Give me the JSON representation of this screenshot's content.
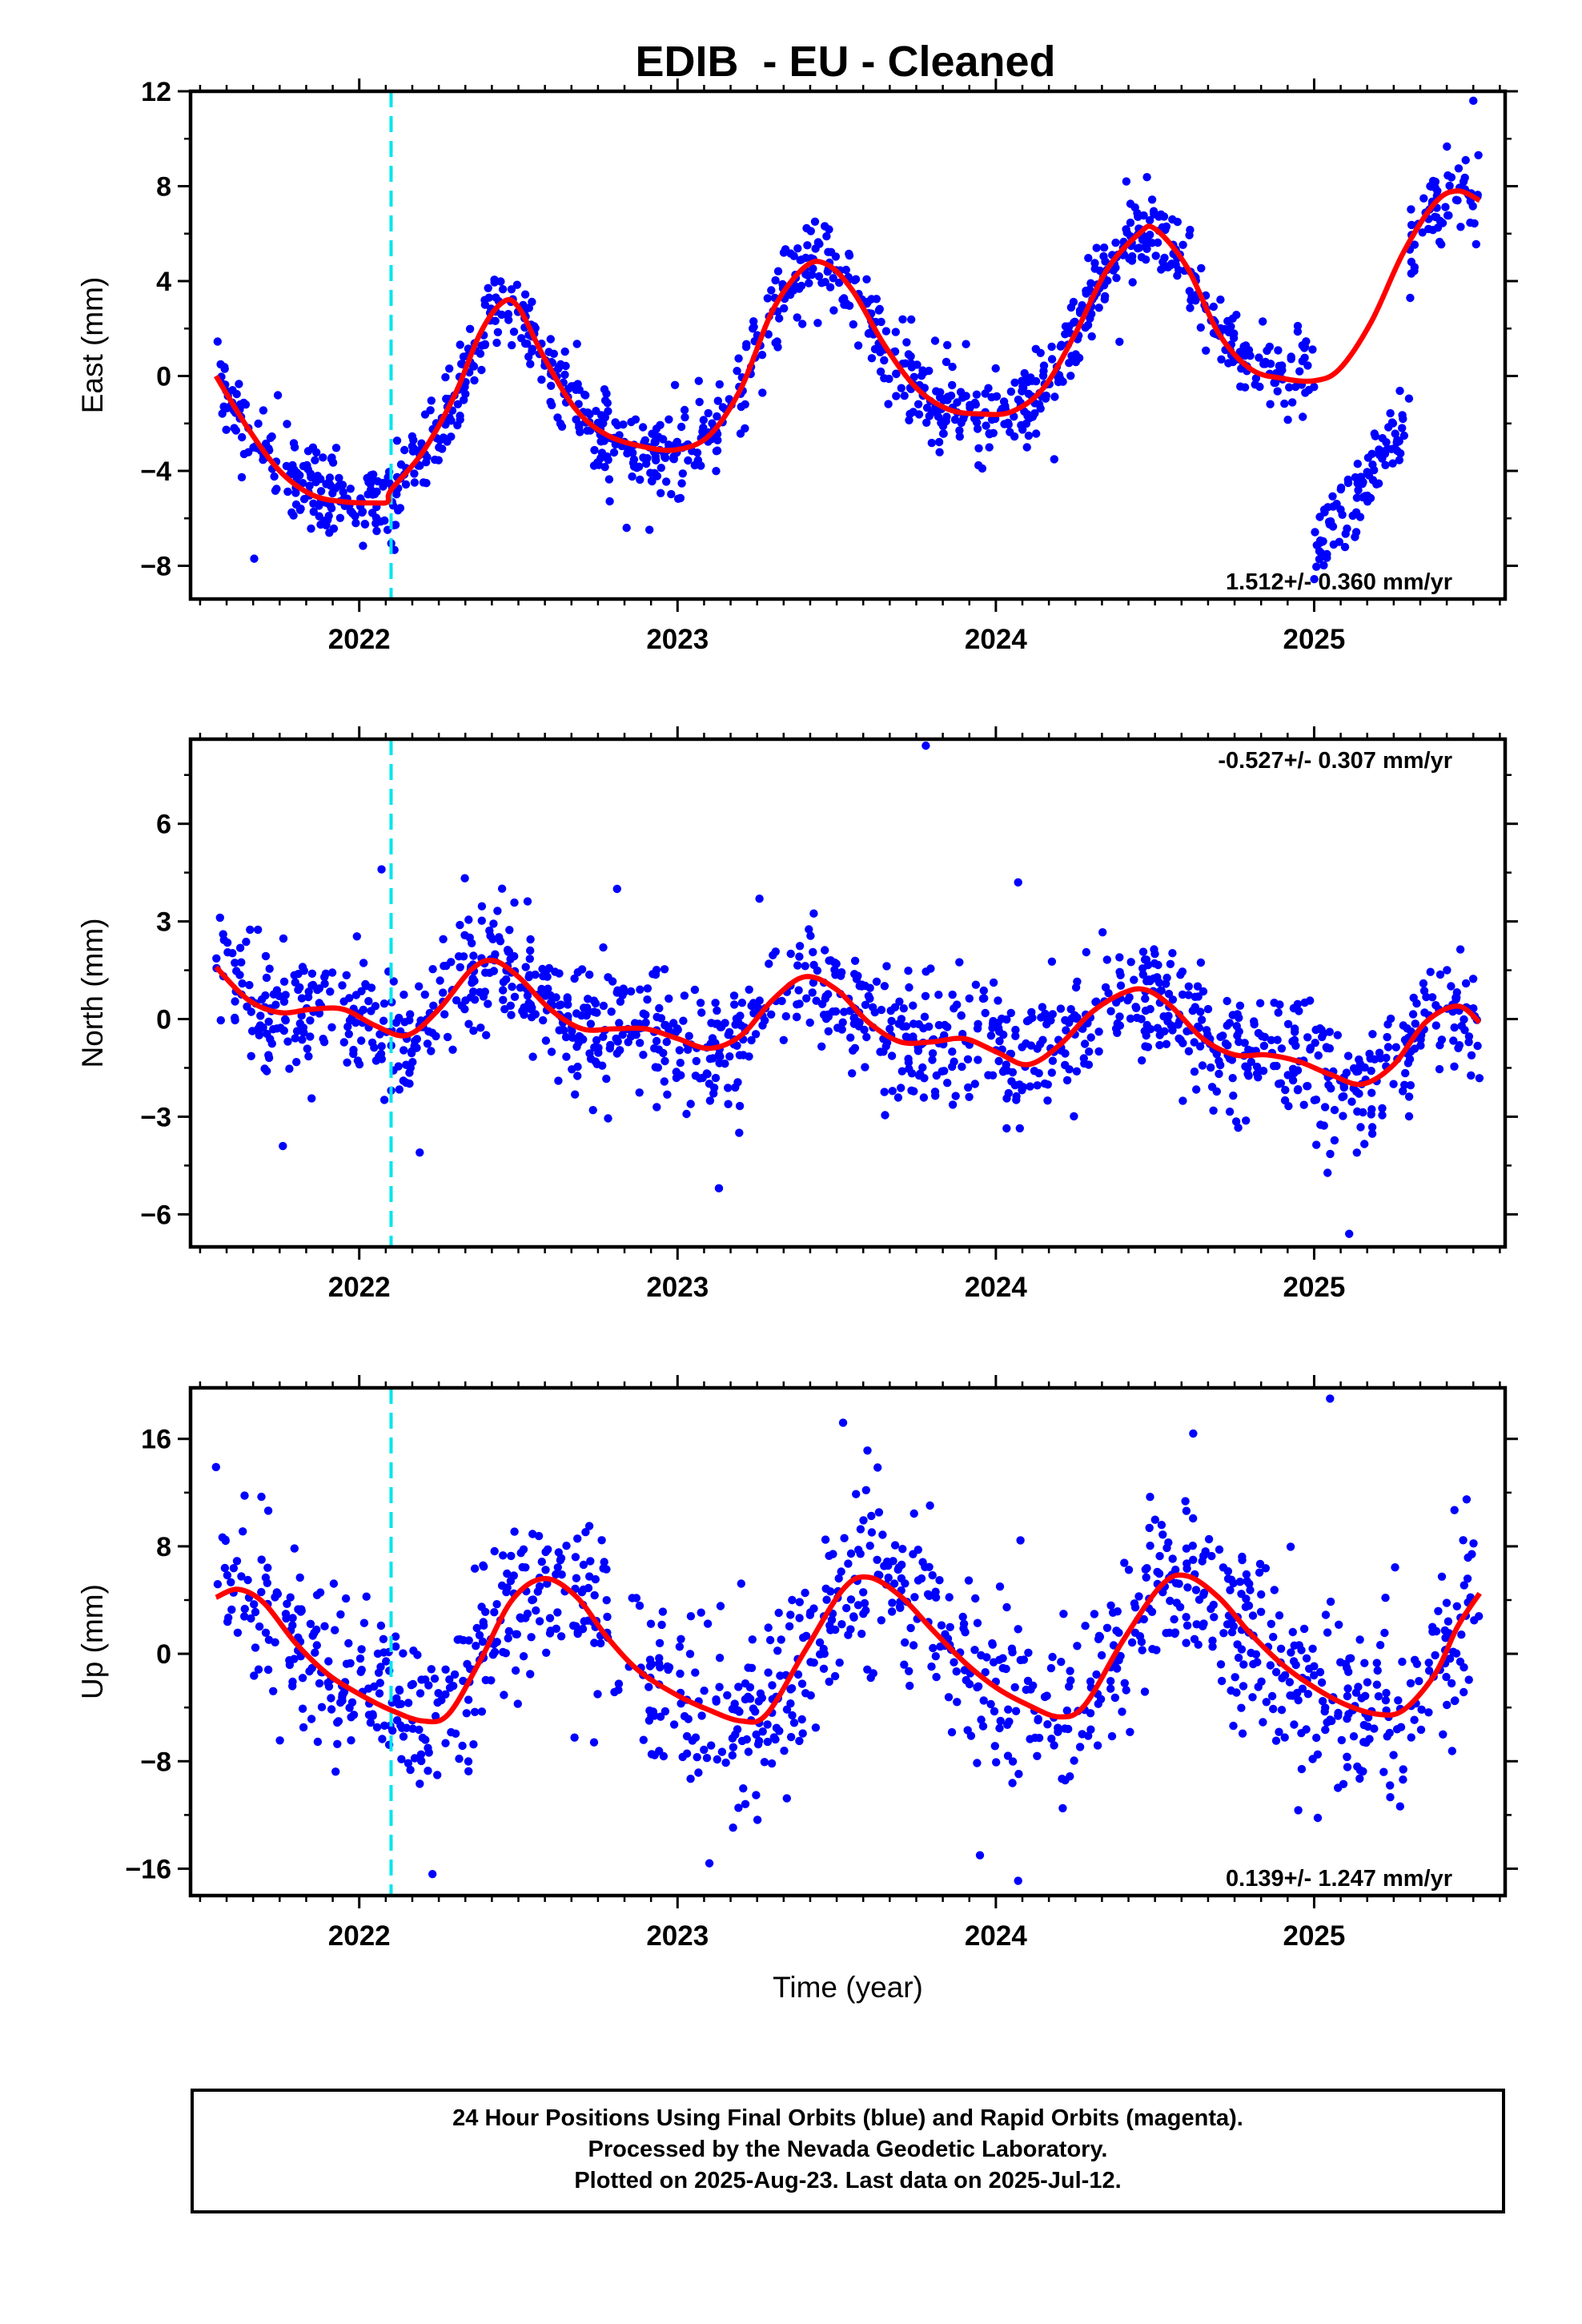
{
  "title": "EDIB  - EU - Cleaned",
  "footer": {
    "line1": "24 Hour Positions Using Final Orbits (blue) and Rapid Orbits (magenta).",
    "line2": "Processed by the Nevada Geodetic Laboratory.",
    "line3": "Plotted on 2025-Aug-23. Last data on 2025-Jul-12."
  },
  "colors": {
    "final_orbits": "#0000ff",
    "fit": "#ff0000",
    "event": "#00e5ee"
  },
  "chart_data": [
    {
      "type": "scatter",
      "panel": "east",
      "ylabel": "East (mm)",
      "xlabel": "",
      "xlim": [
        2021.47,
        2025.6
      ],
      "ylim": [
        -9.4,
        12
      ],
      "yticks": [
        -8,
        -4,
        0,
        4,
        8,
        12
      ],
      "xticks": [
        2022,
        2023,
        2024,
        2025
      ],
      "event_line_x": 2022.1,
      "velocity_label": "1.512+/- 0.360 mm/yr",
      "velocity_position": "bottom-right",
      "trend": [
        [
          2021.55,
          0.0
        ],
        [
          2021.65,
          -2.2
        ],
        [
          2021.75,
          -4.0
        ],
        [
          2021.85,
          -5.0
        ],
        [
          2021.95,
          -5.3
        ],
        [
          2022.05,
          -5.35
        ],
        [
          2022.09,
          -5.3
        ],
        [
          2022.1,
          -4.8
        ],
        [
          2022.2,
          -3.2
        ],
        [
          2022.3,
          -0.8
        ],
        [
          2022.38,
          1.8
        ],
        [
          2022.45,
          3.1
        ],
        [
          2022.5,
          2.9
        ],
        [
          2022.58,
          0.8
        ],
        [
          2022.68,
          -1.4
        ],
        [
          2022.78,
          -2.5
        ],
        [
          2022.9,
          -3.0
        ],
        [
          2023.0,
          -3.1
        ],
        [
          2023.1,
          -2.5
        ],
        [
          2023.2,
          -0.5
        ],
        [
          2023.3,
          2.8
        ],
        [
          2023.4,
          4.6
        ],
        [
          2023.47,
          4.7
        ],
        [
          2023.55,
          3.6
        ],
        [
          2023.65,
          1.3
        ],
        [
          2023.75,
          -0.5
        ],
        [
          2023.85,
          -1.4
        ],
        [
          2023.95,
          -1.6
        ],
        [
          2024.05,
          -1.5
        ],
        [
          2024.15,
          -0.5
        ],
        [
          2024.25,
          1.8
        ],
        [
          2024.35,
          4.5
        ],
        [
          2024.45,
          6.0
        ],
        [
          2024.5,
          6.2
        ],
        [
          2024.6,
          4.6
        ],
        [
          2024.7,
          1.8
        ],
        [
          2024.8,
          0.3
        ],
        [
          2024.9,
          -0.1
        ],
        [
          2025.0,
          -0.2
        ],
        [
          2025.08,
          0.3
        ],
        [
          2025.18,
          2.3
        ],
        [
          2025.28,
          5.2
        ],
        [
          2025.38,
          7.3
        ],
        [
          2025.45,
          7.8
        ],
        [
          2025.52,
          7.4
        ]
      ],
      "scatter_model": {
        "count": 1250,
        "noise_sd": 0.9,
        "segment": {
          "x_from": 2025.0,
          "x_to": 2025.3,
          "y_from": -7.3,
          "y_to": -1.8
        },
        "outliers": [
          [
            2025.5,
            11.6
          ],
          [
            2022.84,
            -6.4
          ],
          [
            2021.67,
            -7.7
          ],
          [
            2024.41,
            8.2
          ]
        ]
      }
    },
    {
      "type": "scatter",
      "panel": "north",
      "ylabel": "North (mm)",
      "xlabel": "",
      "xlim": [
        2021.47,
        2025.6
      ],
      "ylim": [
        -7,
        8.6
      ],
      "yticks": [
        -6,
        -3,
        0,
        3,
        6
      ],
      "xticks": [
        2022,
        2023,
        2024,
        2025
      ],
      "event_line_x": 2022.1,
      "velocity_label": "-0.527+/- 0.307 mm/yr",
      "velocity_position": "top-right",
      "trend": [
        [
          2021.55,
          1.6
        ],
        [
          2021.65,
          0.6
        ],
        [
          2021.75,
          0.2
        ],
        [
          2021.85,
          0.3
        ],
        [
          2021.95,
          0.3
        ],
        [
          2022.05,
          -0.2
        ],
        [
          2022.15,
          -0.5
        ],
        [
          2022.25,
          0.3
        ],
        [
          2022.35,
          1.5
        ],
        [
          2022.42,
          1.8
        ],
        [
          2022.5,
          1.3
        ],
        [
          2022.6,
          0.3
        ],
        [
          2022.7,
          -0.3
        ],
        [
          2022.8,
          -0.3
        ],
        [
          2022.9,
          -0.3
        ],
        [
          2023.0,
          -0.6
        ],
        [
          2023.1,
          -0.9
        ],
        [
          2023.2,
          -0.5
        ],
        [
          2023.3,
          0.6
        ],
        [
          2023.4,
          1.3
        ],
        [
          2023.5,
          0.9
        ],
        [
          2023.6,
          -0.1
        ],
        [
          2023.7,
          -0.7
        ],
        [
          2023.8,
          -0.7
        ],
        [
          2023.9,
          -0.6
        ],
        [
          2024.0,
          -1.0
        ],
        [
          2024.1,
          -1.4
        ],
        [
          2024.2,
          -0.8
        ],
        [
          2024.3,
          0.2
        ],
        [
          2024.4,
          0.8
        ],
        [
          2024.47,
          0.9
        ],
        [
          2024.55,
          0.4
        ],
        [
          2024.65,
          -0.6
        ],
        [
          2024.75,
          -1.1
        ],
        [
          2024.85,
          -1.1
        ],
        [
          2024.95,
          -1.3
        ],
        [
          2025.05,
          -1.7
        ],
        [
          2025.15,
          -2.0
        ],
        [
          2025.25,
          -1.4
        ],
        [
          2025.35,
          -0.1
        ],
        [
          2025.45,
          0.4
        ],
        [
          2025.52,
          -0.1
        ]
      ],
      "scatter_model": {
        "count": 1200,
        "noise_sd": 0.95,
        "segment": null,
        "outliers": [
          [
            2023.78,
            8.4
          ],
          [
            2024.07,
            4.2
          ],
          [
            2022.81,
            4.0
          ],
          [
            2025.11,
            -6.6
          ],
          [
            2023.13,
            -5.2
          ],
          [
            2021.76,
            -3.9
          ],
          [
            2022.19,
            -4.1
          ],
          [
            2022.07,
            4.6
          ]
        ]
      }
    },
    {
      "type": "scatter",
      "panel": "up",
      "ylabel": "Up (mm)",
      "xlabel": "Time (year)",
      "xlim": [
        2021.47,
        2025.6
      ],
      "ylim": [
        -18,
        19.8
      ],
      "yticks": [
        -16,
        -8,
        0,
        8,
        16
      ],
      "xticks": [
        2022,
        2023,
        2024,
        2025
      ],
      "event_line_x": 2022.1,
      "velocity_label": "0.139+/- 1.247 mm/yr",
      "velocity_position": "bottom-right",
      "trend": [
        [
          2021.55,
          4.2
        ],
        [
          2021.62,
          4.8
        ],
        [
          2021.7,
          3.8
        ],
        [
          2021.8,
          0.8
        ],
        [
          2021.9,
          -1.5
        ],
        [
          2022.0,
          -3.0
        ],
        [
          2022.1,
          -4.2
        ],
        [
          2022.2,
          -5.0
        ],
        [
          2022.28,
          -4.5
        ],
        [
          2022.38,
          -0.5
        ],
        [
          2022.48,
          4.0
        ],
        [
          2022.58,
          5.6
        ],
        [
          2022.68,
          4.3
        ],
        [
          2022.78,
          1.2
        ],
        [
          2022.88,
          -1.3
        ],
        [
          2023.0,
          -3.1
        ],
        [
          2023.1,
          -4.2
        ],
        [
          2023.2,
          -5.0
        ],
        [
          2023.28,
          -4.5
        ],
        [
          2023.4,
          0.2
        ],
        [
          2023.52,
          4.8
        ],
        [
          2023.6,
          5.7
        ],
        [
          2023.7,
          4.3
        ],
        [
          2023.8,
          1.8
        ],
        [
          2023.9,
          -0.6
        ],
        [
          2024.0,
          -2.5
        ],
        [
          2024.1,
          -3.8
        ],
        [
          2024.2,
          -4.7
        ],
        [
          2024.28,
          -3.8
        ],
        [
          2024.4,
          1.0
        ],
        [
          2024.52,
          5.1
        ],
        [
          2024.6,
          5.8
        ],
        [
          2024.7,
          4.2
        ],
        [
          2024.8,
          1.5
        ],
        [
          2024.9,
          -0.8
        ],
        [
          2025.0,
          -2.5
        ],
        [
          2025.1,
          -3.8
        ],
        [
          2025.2,
          -4.5
        ],
        [
          2025.28,
          -4.2
        ],
        [
          2025.38,
          -1.5
        ],
        [
          2025.45,
          2.0
        ],
        [
          2025.52,
          4.5
        ]
      ],
      "scatter_model": {
        "count": 1100,
        "noise_sd": 3.3,
        "segment": null,
        "outliers": [
          [
            2025.05,
            19.0
          ],
          [
            2024.62,
            16.4
          ],
          [
            2023.52,
            17.2
          ],
          [
            2024.07,
            -16.9
          ],
          [
            2022.23,
            -16.4
          ],
          [
            2023.95,
            -15.0
          ],
          [
            2023.1,
            -15.6
          ],
          [
            2021.55,
            13.9
          ]
        ]
      }
    }
  ]
}
